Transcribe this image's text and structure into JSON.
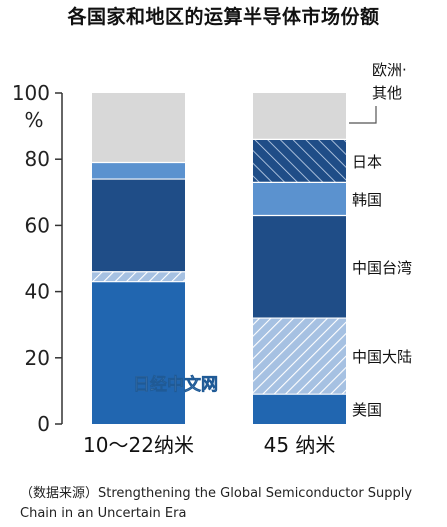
{
  "title": "各国家和地区的运算半导体市场份额",
  "source": "（数据来源）Strengthening the Global Semiconductor Supply Chain in an Uncertain Era",
  "watermark": "日经中文网",
  "chart_data": {
    "type": "bar",
    "stacked": true,
    "title": "各国家和地区的运算半导体市场份额",
    "ylabel": "%",
    "ylim": [
      0,
      100
    ],
    "yticks": [
      0,
      20,
      40,
      60,
      80,
      100
    ],
    "grid": false,
    "legend_position": "right",
    "categories": [
      "10～22纳米",
      "45 纳米"
    ],
    "series": [
      {
        "name": "美国",
        "values": [
          43,
          9
        ],
        "color": "#2166b0",
        "pattern": "solid"
      },
      {
        "name": "中国大陆",
        "values": [
          3,
          23
        ],
        "color": "#a6c1e2",
        "pattern": "hatch-light"
      },
      {
        "name": "中国台湾",
        "values": [
          28,
          31
        ],
        "color": "#1f4d87",
        "pattern": "solid"
      },
      {
        "name": "韩国",
        "values": [
          5,
          10
        ],
        "color": "#5b92cf",
        "pattern": "solid"
      },
      {
        "name": "日本",
        "values": [
          0,
          13
        ],
        "color": "#1f4d87",
        "pattern": "hatch-dark"
      },
      {
        "name": "欧洲·其他",
        "values": [
          21,
          14
        ],
        "color": "#d8d8d8",
        "pattern": "solid"
      }
    ]
  }
}
